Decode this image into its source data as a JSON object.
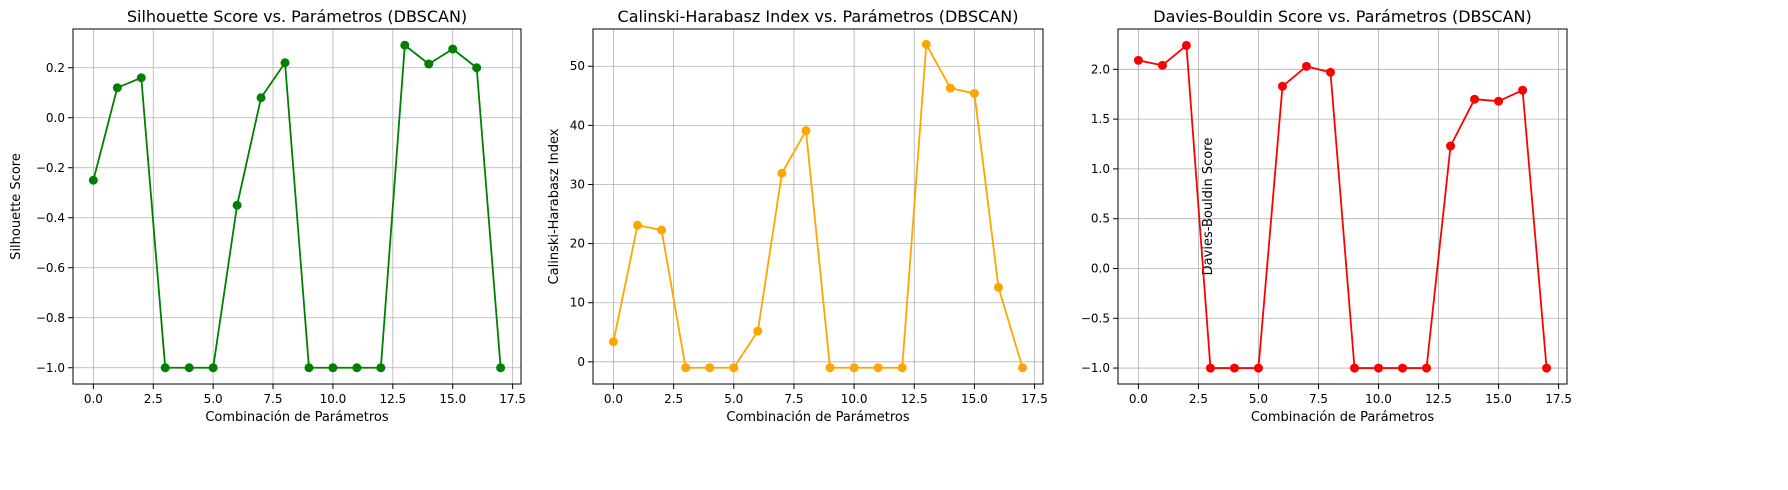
{
  "chart_data": [
    {
      "type": "line",
      "title": "Silhouette Score vs. Parámetros (DBSCAN)",
      "xlabel": "Combinación de Parámetros",
      "ylabel": "Silhouette Score",
      "color": "#008000",
      "marker": "circle",
      "grid": true,
      "xlim": [
        -0.85,
        17.85
      ],
      "ylim": [
        -1.065,
        0.355
      ],
      "xticks": [
        0.0,
        2.5,
        5.0,
        7.5,
        10.0,
        12.5,
        15.0,
        17.5
      ],
      "xtick_labels": [
        "0.0",
        "2.5",
        "5.0",
        "7.5",
        "10.0",
        "12.5",
        "15.0",
        "17.5"
      ],
      "yticks": [
        -1.0,
        -0.8,
        -0.6,
        -0.4,
        -0.2,
        0.0,
        0.2
      ],
      "ytick_labels": [
        "−1.0",
        "−0.8",
        "−0.6",
        "−0.4",
        "−0.2",
        "0.0",
        "0.2"
      ],
      "x": [
        0,
        1,
        2,
        3,
        4,
        5,
        6,
        7,
        8,
        9,
        10,
        11,
        12,
        13,
        14,
        15,
        16,
        17
      ],
      "y": [
        -0.25,
        0.12,
        0.16,
        -1.0,
        -1.0,
        -1.0,
        -0.35,
        0.08,
        0.22,
        -1.0,
        -1.0,
        -1.0,
        -1.0,
        0.29,
        0.215,
        0.275,
        0.2,
        -1.0
      ]
    },
    {
      "type": "line",
      "title": "Calinski-Harabasz Index vs. Parámetros (DBSCAN)",
      "xlabel": "Combinación de Parámetros",
      "ylabel": "Calinski-Harabasz Index",
      "color": "#FFA500",
      "marker": "circle",
      "grid": true,
      "xlim": [
        -0.85,
        17.85
      ],
      "ylim": [
        -3.75,
        56.3
      ],
      "xticks": [
        0.0,
        2.5,
        5.0,
        7.5,
        10.0,
        12.5,
        15.0,
        17.5
      ],
      "xtick_labels": [
        "0.0",
        "2.5",
        "5.0",
        "7.5",
        "10.0",
        "12.5",
        "15.0",
        "17.5"
      ],
      "yticks": [
        0,
        10,
        20,
        30,
        40,
        50
      ],
      "ytick_labels": [
        "0",
        "10",
        "20",
        "30",
        "40",
        "50"
      ],
      "x": [
        0,
        1,
        2,
        3,
        4,
        5,
        6,
        7,
        8,
        9,
        10,
        11,
        12,
        13,
        14,
        15,
        16,
        17
      ],
      "y": [
        3.4,
        23.1,
        22.3,
        -1.0,
        -1.0,
        -1.0,
        5.2,
        31.9,
        39.1,
        -1.0,
        -1.0,
        -1.0,
        -1.0,
        53.7,
        46.3,
        45.4,
        12.6,
        -1.0
      ]
    },
    {
      "type": "line",
      "title": "Davies-Bouldin Score vs. Parámetros (DBSCAN)",
      "xlabel": "Combinación de Parámetros",
      "ylabel": "Davies-Bouldin Score",
      "color": "#FF0000",
      "marker": "circle",
      "grid": true,
      "xlim": [
        -0.85,
        17.85
      ],
      "ylim": [
        -1.16,
        2.405
      ],
      "xticks": [
        0.0,
        2.5,
        5.0,
        7.5,
        10.0,
        12.5,
        15.0,
        17.5
      ],
      "xtick_labels": [
        "0.0",
        "2.5",
        "5.0",
        "7.5",
        "10.0",
        "12.5",
        "15.0",
        "17.5"
      ],
      "yticks": [
        -1.0,
        -0.5,
        0.0,
        0.5,
        1.0,
        1.5,
        2.0
      ],
      "ytick_labels": [
        "−1.0",
        "−0.5",
        "0.0",
        "0.5",
        "1.0",
        "1.5",
        "2.0"
      ],
      "x": [
        0,
        1,
        2,
        3,
        4,
        5,
        6,
        7,
        8,
        9,
        10,
        11,
        12,
        13,
        14,
        15,
        16,
        17
      ],
      "y": [
        2.09,
        2.04,
        2.24,
        -1.0,
        -1.0,
        -1.0,
        1.83,
        2.03,
        1.97,
        -1.0,
        -1.0,
        -1.0,
        -1.0,
        1.23,
        1.7,
        1.68,
        1.79,
        -1.0
      ]
    }
  ]
}
